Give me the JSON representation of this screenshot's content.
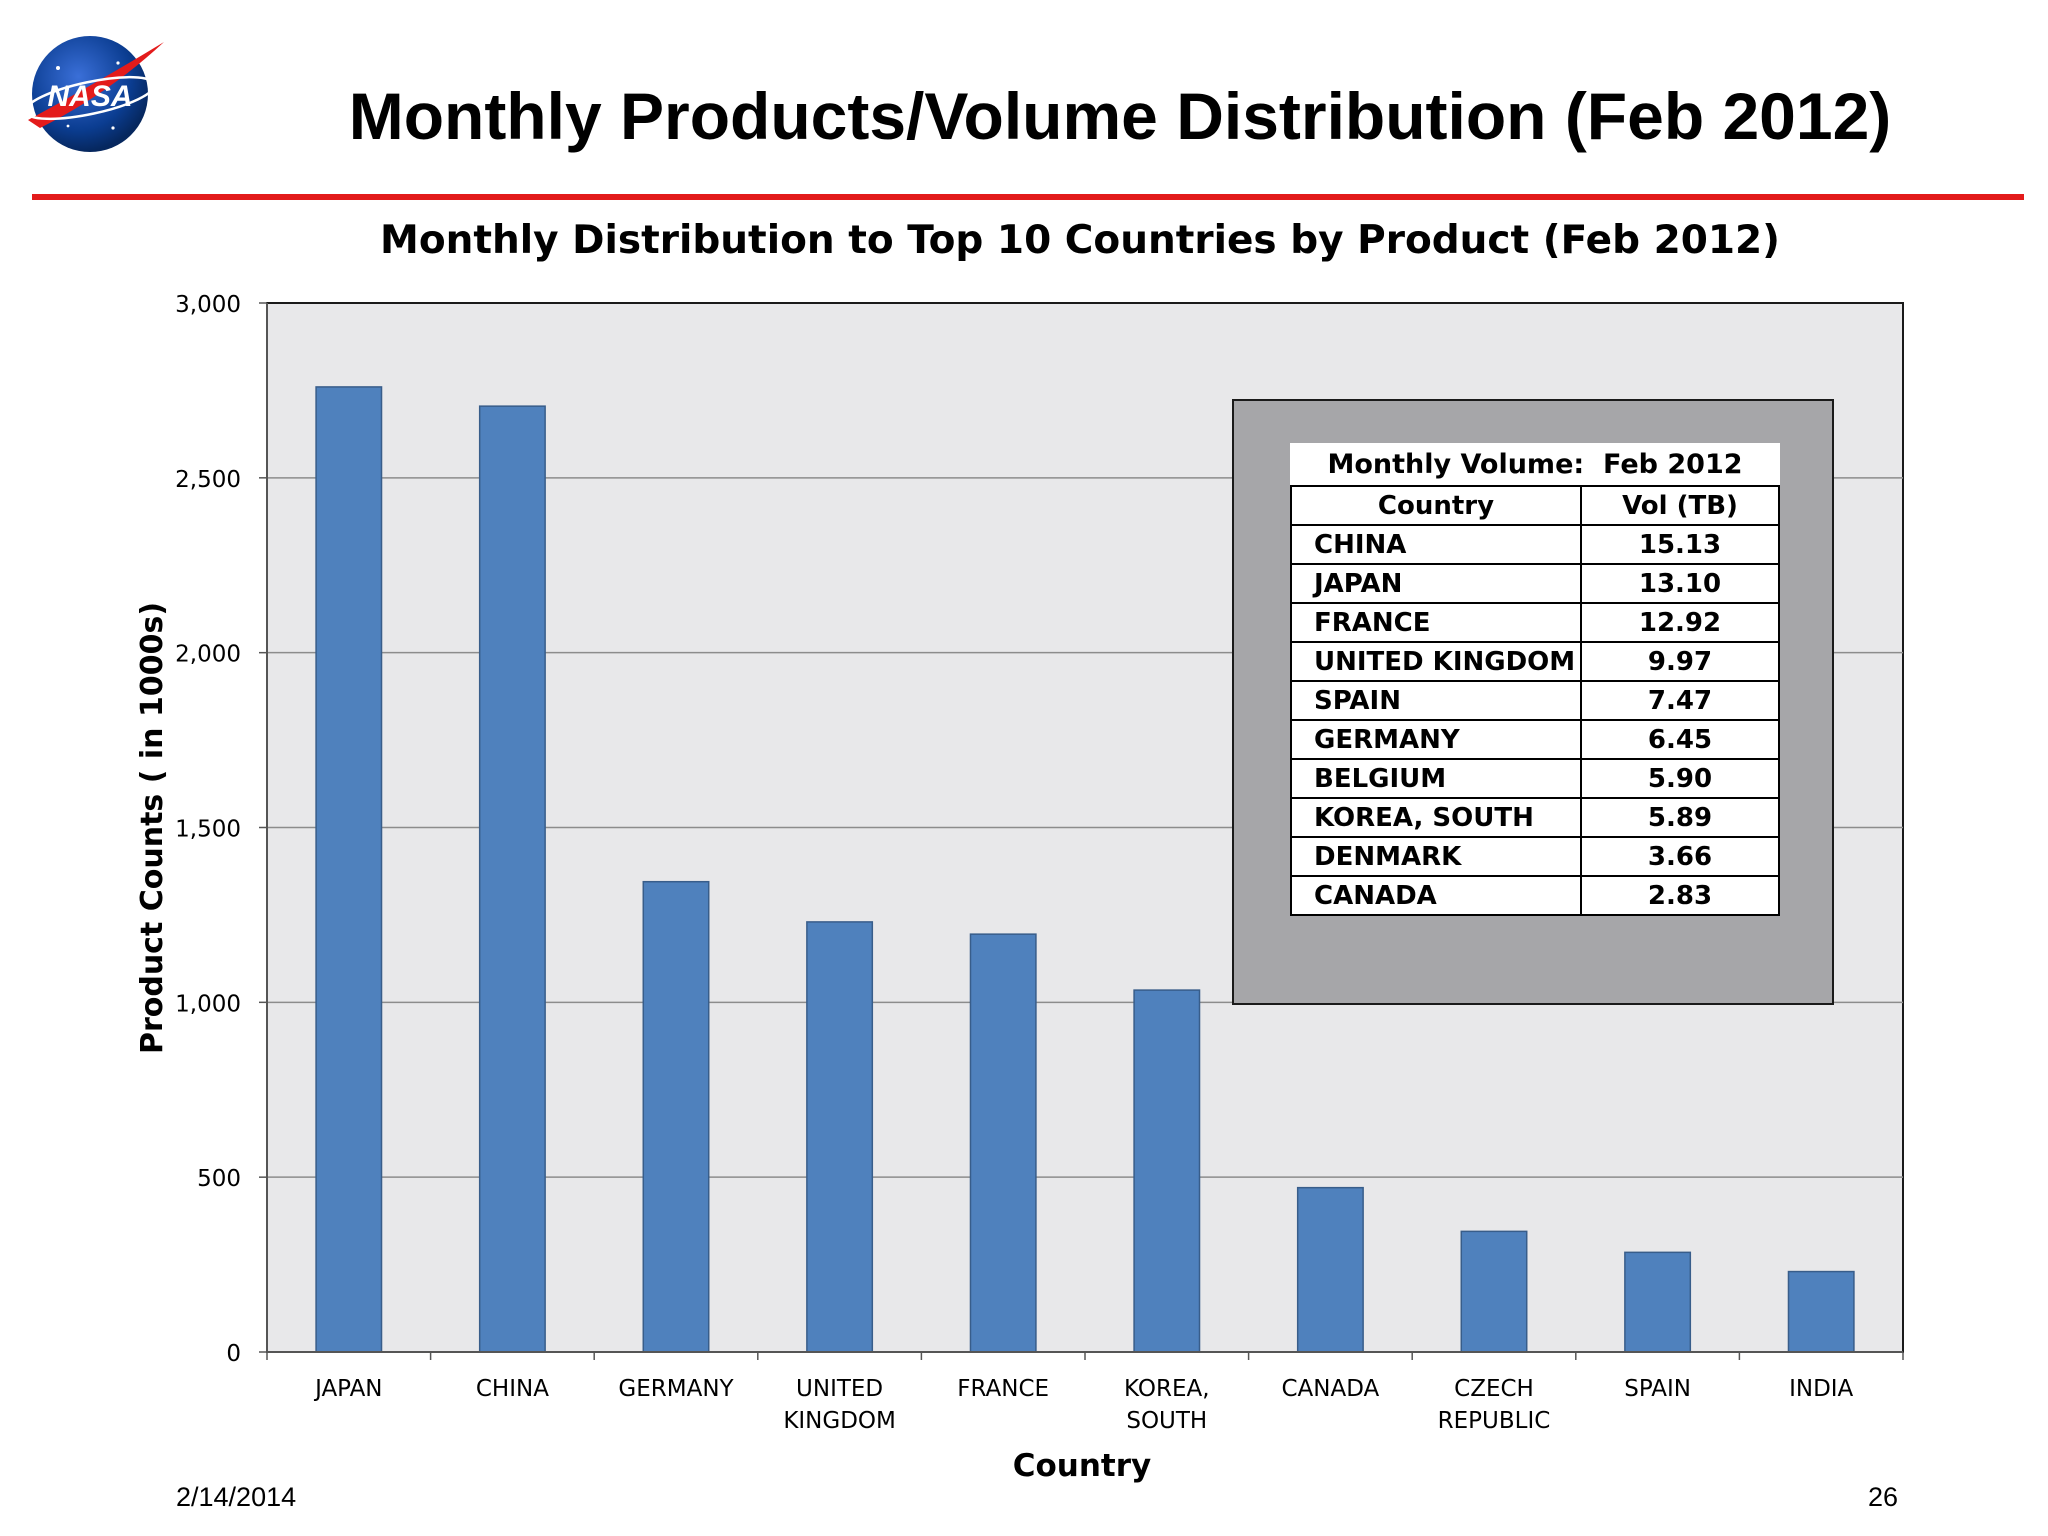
{
  "slide": {
    "title": "Monthly Products/Volume Distribution (Feb 2012)",
    "date": "2/14/2014",
    "page_number": "26",
    "logo_text": "NASA",
    "accent_color": "#e31b1b"
  },
  "chart_data": {
    "type": "bar",
    "title": "Monthly Distribution to Top 10 Countries by Product (Feb 2012)",
    "xlabel": "Country",
    "ylabel": "Product Counts ( in 1000s)",
    "categories": [
      [
        "JAPAN"
      ],
      [
        "CHINA"
      ],
      [
        "GERMANY"
      ],
      [
        "UNITED",
        "KINGDOM"
      ],
      [
        "FRANCE"
      ],
      [
        "KOREA,",
        "SOUTH"
      ],
      [
        "CANADA"
      ],
      [
        "CZECH",
        "REPUBLIC"
      ],
      [
        "SPAIN"
      ],
      [
        "INDIA"
      ]
    ],
    "values": [
      2760,
      2705,
      1345,
      1230,
      1195,
      1035,
      470,
      345,
      285,
      230
    ],
    "ylim": [
      0,
      3000
    ],
    "yticks": [
      0,
      500,
      1000,
      1500,
      2000,
      2500,
      3000
    ],
    "ytick_labels": [
      "0",
      "500",
      "1,000",
      "1,500",
      "2,000",
      "2,500",
      "3,000"
    ],
    "grid": true,
    "bar_color": "#4f81bd",
    "plot_background": "#e8e8ea"
  },
  "volume_table": {
    "title": "Monthly Volume:  Feb 2012",
    "headers": [
      "Country",
      "Vol (TB)"
    ],
    "rows": [
      [
        "CHINA",
        "15.13"
      ],
      [
        "JAPAN",
        "13.10"
      ],
      [
        "FRANCE",
        "12.92"
      ],
      [
        "UNITED KINGDOM",
        "9.97"
      ],
      [
        "SPAIN",
        "7.47"
      ],
      [
        "GERMANY",
        "6.45"
      ],
      [
        "BELGIUM",
        "5.90"
      ],
      [
        "KOREA, SOUTH",
        "5.89"
      ],
      [
        "DENMARK",
        "3.66"
      ],
      [
        "CANADA",
        "2.83"
      ]
    ]
  }
}
